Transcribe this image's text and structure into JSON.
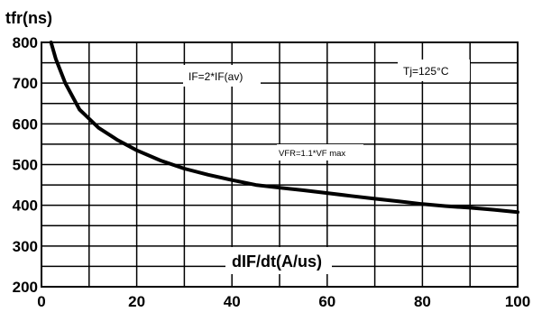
{
  "chart_data": {
    "type": "line",
    "ylabel": "tfr(ns)",
    "xlabel": "dIF/dt(A/us)",
    "xlim": [
      0,
      100
    ],
    "ylim": [
      200,
      800
    ],
    "x_ticks": [
      "0",
      "20",
      "40",
      "60",
      "80",
      "100"
    ],
    "y_ticks": [
      "200",
      "300",
      "400",
      "500",
      "600",
      "700",
      "800"
    ],
    "grid": true,
    "series": [
      {
        "x": [
          2,
          3,
          5,
          8,
          12,
          16,
          20,
          25,
          30,
          35,
          40,
          45,
          50,
          55,
          60,
          65,
          70,
          75,
          80,
          85,
          90,
          95,
          100
        ],
        "values": [
          800,
          760,
          700,
          635,
          590,
          560,
          535,
          510,
          490,
          475,
          462,
          450,
          443,
          437,
          430,
          423,
          416,
          410,
          403,
          398,
          394,
          389,
          383
        ]
      }
    ],
    "annotations": [
      {
        "text": "IF=2*IF(av)"
      },
      {
        "text": "Tj=125°C"
      },
      {
        "text": "VFR=1.1*VF max"
      }
    ]
  }
}
